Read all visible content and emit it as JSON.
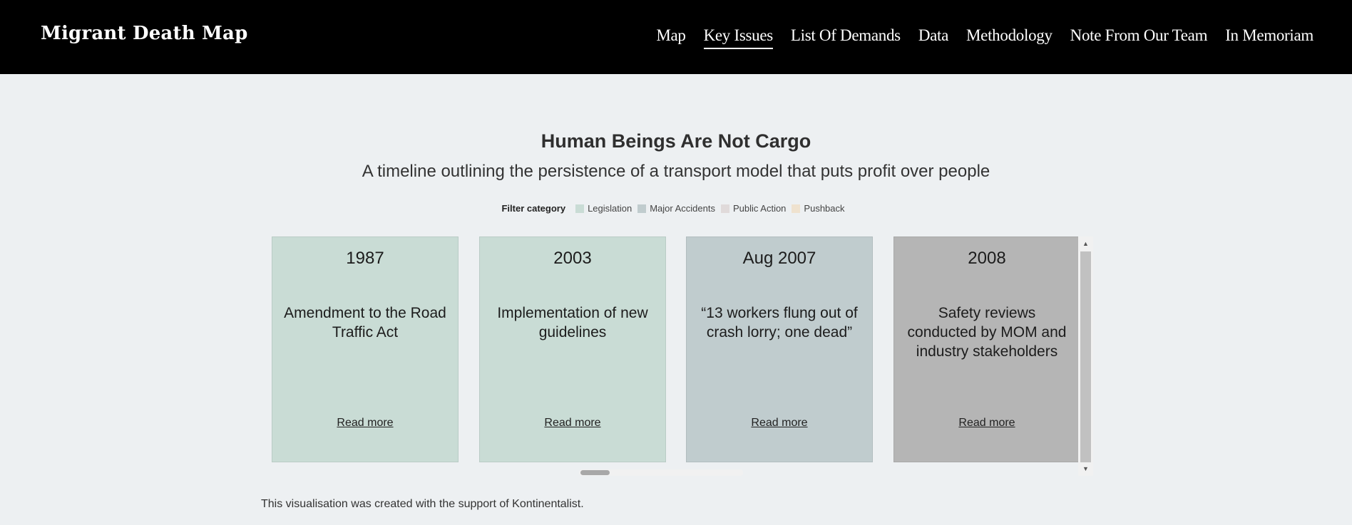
{
  "header": {
    "brand": "Migrant Death Map",
    "nav": [
      {
        "label": "Map",
        "active": false
      },
      {
        "label": "Key Issues",
        "active": true
      },
      {
        "label": "List Of Demands",
        "active": false
      },
      {
        "label": "Data",
        "active": false
      },
      {
        "label": "Methodology",
        "active": false
      },
      {
        "label": "Note From Our Team",
        "active": false
      },
      {
        "label": "In Memoriam",
        "active": false
      }
    ]
  },
  "main": {
    "title": "Human Beings Are Not Cargo",
    "subtitle": "A timeline outlining the persistence of a transport model that puts profit over people"
  },
  "filter": {
    "label": "Filter category",
    "categories": [
      {
        "label": "Legislation",
        "color": "#c9dcd5"
      },
      {
        "label": "Major Accidents",
        "color": "#c0ccce"
      },
      {
        "label": "Public Action",
        "color": "#e0dada"
      },
      {
        "label": "Pushback",
        "color": "#efe2cf"
      }
    ]
  },
  "timeline": {
    "cards": [
      {
        "date": "1987",
        "heading": "Amendment to the Road Traffic Act",
        "link": "Read more",
        "color": "#c9dcd5"
      },
      {
        "date": "2003",
        "heading": "Implementation of new guidelines",
        "link": "Read more",
        "color": "#c9dcd5"
      },
      {
        "date": "Aug 2007",
        "heading": "“13 workers flung out of crash lorry; one dead”",
        "link": "Read more",
        "color": "#c0ccce"
      },
      {
        "date": "2008",
        "heading": "Safety reviews conducted by MOM and industry stakeholders",
        "link": "Read more",
        "color": "#b5b5b5"
      }
    ],
    "scroll_up_icon": "triangle-up",
    "scroll_down_icon": "triangle-down"
  },
  "footer": {
    "note": "This visualisation was created with the support of Kontinentalist."
  }
}
